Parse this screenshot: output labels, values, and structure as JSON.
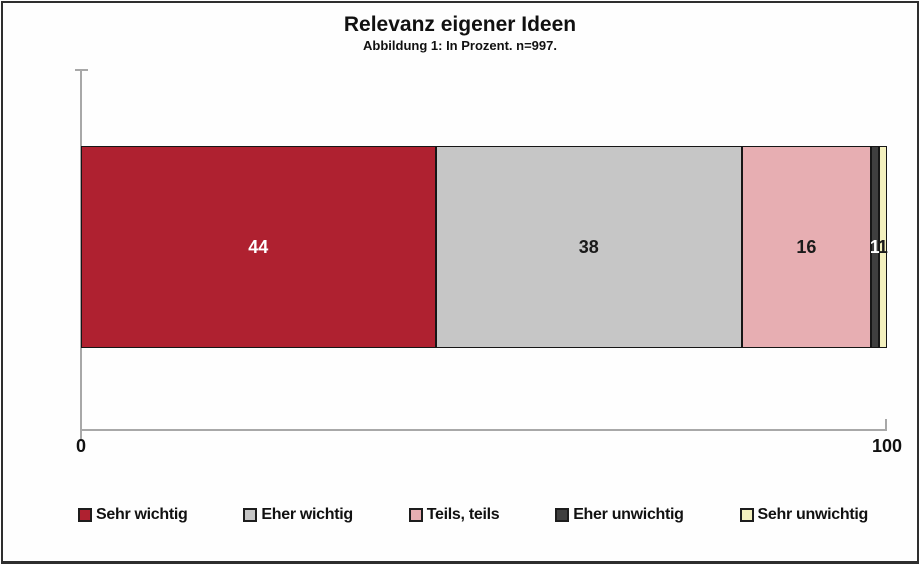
{
  "chart": {
    "title": "Relevanz eigener Ideen",
    "subtitle": "Abbildung 1: In Prozent. n=997.",
    "axis": {
      "min_label": "0",
      "max_label": "100"
    }
  },
  "chart_data": {
    "type": "bar",
    "orientation": "horizontal",
    "stacked": true,
    "title": "Relevanz eigener Ideen",
    "subtitle": "Abbildung 1: In Prozent. n=997.",
    "sample_size_text": "n=997",
    "unit": "Prozent",
    "xlabel": "",
    "ylabel": "",
    "xlim": [
      0,
      100
    ],
    "x_ticks": [
      0,
      100
    ],
    "grid": false,
    "legend_position": "bottom",
    "categories": [
      "Sehr wichtig",
      "Eher wichtig",
      "Teils, teils",
      "Eher unwichtig",
      "Sehr unwichtig"
    ],
    "values": [
      44,
      38,
      16,
      1,
      1
    ],
    "series": [
      {
        "name": "Sehr wichtig",
        "value": 44,
        "color": "#AF2130",
        "label_color": "#FFFFFF"
      },
      {
        "name": "Eher wichtig",
        "value": 38,
        "color": "#C6C6C6",
        "label_color": "#1A1A1A"
      },
      {
        "name": "Teils, teils",
        "value": 16,
        "color": "#E7AEB2",
        "label_color": "#1A1A1A"
      },
      {
        "name": "Eher unwichtig",
        "value": 1,
        "color": "#3F3F3F",
        "label_color": "#FFFFFF"
      },
      {
        "name": "Sehr unwichtig",
        "value": 1,
        "color": "#F3F0BE",
        "label_color": "#1A1A1A"
      }
    ],
    "colors": {
      "axis": "#A8A8A8",
      "segment_border": "#161616",
      "text": "#111111",
      "background": "#FEFEFE"
    }
  }
}
